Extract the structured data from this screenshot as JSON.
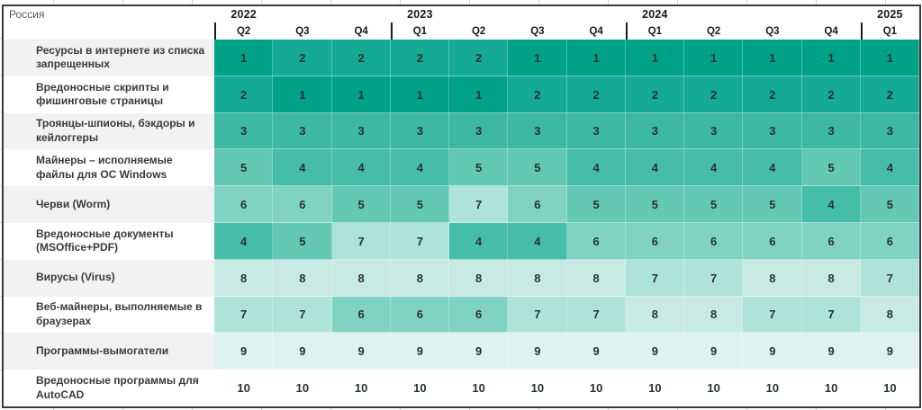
{
  "region_label": "Россия",
  "chart_data": {
    "type": "heatmap",
    "title": "Россия",
    "quarters": [
      "Q2",
      "Q3",
      "Q4",
      "Q1",
      "Q2",
      "Q3",
      "Q4",
      "Q1",
      "Q2",
      "Q3",
      "Q4",
      "Q1"
    ],
    "col_years": [
      {
        "label": "2022",
        "column_index": 0
      },
      {
        "label": "2023",
        "column_index": 3
      },
      {
        "label": "2024",
        "column_index": 7
      },
      {
        "label": "2025",
        "column_index": 11
      }
    ],
    "year_start_columns": [
      0,
      3,
      7,
      11
    ],
    "categories": [
      "2022 Q2",
      "2022 Q3",
      "2022 Q4",
      "2023 Q1",
      "2023 Q2",
      "2023 Q3",
      "2023 Q4",
      "2024 Q1",
      "2024 Q2",
      "2024 Q3",
      "2024 Q4",
      "2025 Q1"
    ],
    "rows": [
      "Ресурсы в интернете из списка запрещенных",
      "Вредоносные скрипты и фишинговые страницы",
      "Троянцы-шпионы, бэкдоры и кейлоггеры",
      "Майнеры – исполняемые файлы для ОС Windows",
      "Черви (Worm)",
      "Вредоносные документы (MSOffice+PDF)",
      "Вирусы (Virus)",
      "Веб-майнеры, выполняемые в браузерах",
      "Программы-вымогатели",
      "Вредоносные программы для AutoCAD"
    ],
    "values": [
      [
        1,
        2,
        2,
        2,
        2,
        1,
        1,
        1,
        1,
        1,
        1,
        1
      ],
      [
        2,
        1,
        1,
        1,
        1,
        2,
        2,
        2,
        2,
        2,
        2,
        2
      ],
      [
        3,
        3,
        3,
        3,
        3,
        3,
        3,
        3,
        3,
        3,
        3,
        3
      ],
      [
        5,
        4,
        4,
        4,
        5,
        5,
        4,
        4,
        4,
        4,
        5,
        4
      ],
      [
        6,
        6,
        5,
        5,
        7,
        6,
        5,
        5,
        5,
        5,
        4,
        5
      ],
      [
        4,
        5,
        7,
        7,
        4,
        4,
        6,
        6,
        6,
        6,
        6,
        6
      ],
      [
        8,
        8,
        8,
        8,
        8,
        8,
        8,
        7,
        7,
        8,
        8,
        7
      ],
      [
        7,
        7,
        6,
        6,
        6,
        7,
        7,
        8,
        8,
        7,
        7,
        8
      ],
      [
        9,
        9,
        9,
        9,
        9,
        9,
        9,
        9,
        9,
        9,
        9,
        9
      ],
      [
        10,
        10,
        10,
        10,
        10,
        10,
        10,
        10,
        10,
        10,
        10,
        10
      ]
    ],
    "palette": {
      "1": "#00a287",
      "2": "#15aa93",
      "3": "#3db8a2",
      "4": "#46bda8",
      "5": "#63c8b4",
      "6": "#80d3c2",
      "7": "#aee3d8",
      "8": "#c7ebe2",
      "9": "#def3ed",
      "10": "#ffffff"
    }
  },
  "colors": {
    "table_border": "#3b3b3b",
    "year_separator": "#1a1a1a",
    "label_bg_odd": "#f2f2f2",
    "label_bg_even": "#ffffff",
    "header_text": "#1a1a1a",
    "label_text": "#3a3a3a",
    "number_text": "#263230",
    "region_text": "#595959",
    "gridline_tick": "#d6d6d6"
  }
}
